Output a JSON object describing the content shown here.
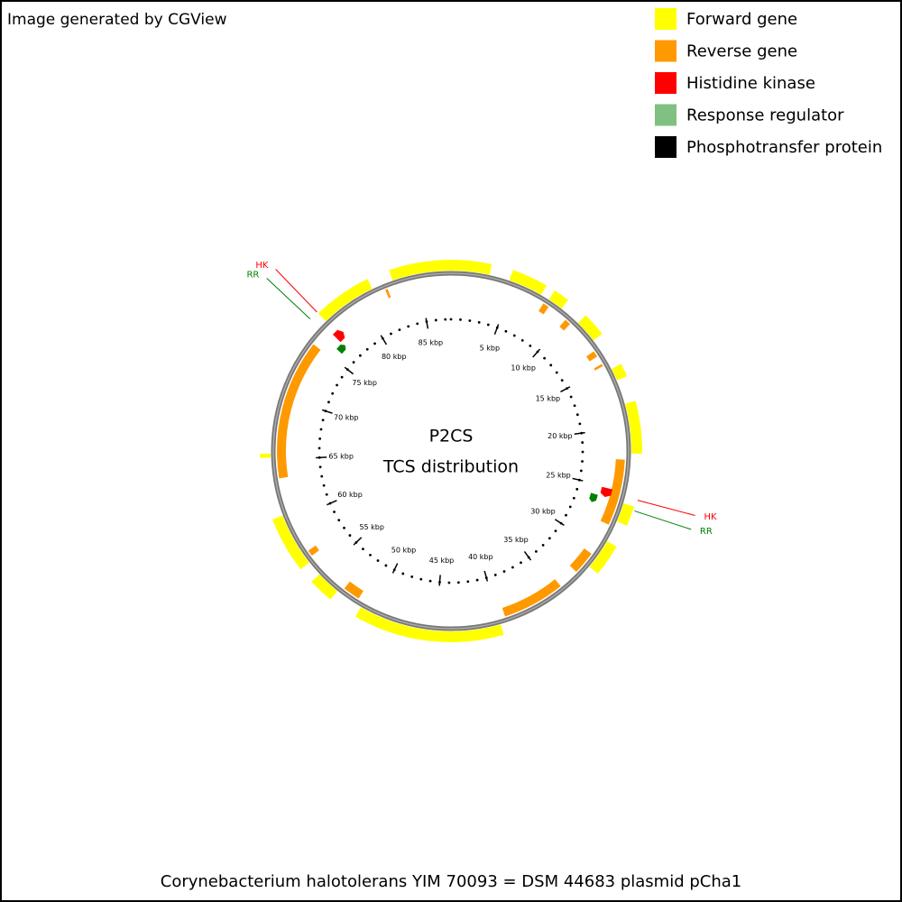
{
  "header": {
    "credit": "Image generated by CGView"
  },
  "legend": [
    {
      "label": "Forward gene",
      "color": "#ffff00"
    },
    {
      "label": "Reverse gene",
      "color": "#ff9900"
    },
    {
      "label": "Histidine kinase",
      "color": "#ff0000"
    },
    {
      "label": "Response regulator",
      "color": "#80c080"
    },
    {
      "label": "Phosphotransfer protein",
      "color": "#000000"
    }
  ],
  "map": {
    "title": "P2CS",
    "subtitle": "TCS distribution",
    "sequence_length_kbp": 87.6,
    "ticks": [
      {
        "value": 5,
        "label": "5 kbp"
      },
      {
        "value": 10,
        "label": "10 kbp"
      },
      {
        "value": 15,
        "label": "15 kbp"
      },
      {
        "value": 20,
        "label": "20 kbp"
      },
      {
        "value": 25,
        "label": "25 kbp"
      },
      {
        "value": 30,
        "label": "30 kbp"
      },
      {
        "value": 35,
        "label": "35 kbp"
      },
      {
        "value": 40,
        "label": "40 kbp"
      },
      {
        "value": 45,
        "label": "45 kbp"
      },
      {
        "value": 50,
        "label": "50 kbp"
      },
      {
        "value": 55,
        "label": "55 kbp"
      },
      {
        "value": 60,
        "label": "60 kbp"
      },
      {
        "value": 65,
        "label": "65 kbp"
      },
      {
        "value": 70,
        "label": "70 kbp"
      },
      {
        "value": 75,
        "label": "75 kbp"
      },
      {
        "value": 80,
        "label": "80 kbp"
      },
      {
        "value": 85,
        "label": "85 kbp"
      }
    ],
    "forward_genes": [
      {
        "start": 83.0,
        "end": 3.0
      },
      {
        "start": 4.6,
        "end": 7.3
      },
      {
        "start": 8.0,
        "end": 9.2
      },
      {
        "start": 10.9,
        "end": 12.7
      },
      {
        "start": 15.3,
        "end": 16.3
      },
      {
        "start": 18.2,
        "end": 22.1
      },
      {
        "start": 26.0,
        "end": 27.5
      },
      {
        "start": 29.2,
        "end": 31.6
      },
      {
        "start": 39.9,
        "end": 51.1
      },
      {
        "start": 53.3,
        "end": 55.2
      },
      {
        "start": 56.4,
        "end": 60.6
      },
      {
        "start": 65.2,
        "end": 65.5
      },
      {
        "start": 76.9,
        "end": 81.3
      }
    ],
    "reverse_genes": [
      {
        "start": 7.8,
        "end": 8.3
      },
      {
        "start": 10.0,
        "end": 10.5
      },
      {
        "start": 13.4,
        "end": 13.9
      },
      {
        "start": 14.6,
        "end": 14.8
      },
      {
        "start": 22.6,
        "end": 28.0
      },
      {
        "start": 30.7,
        "end": 32.6
      },
      {
        "start": 34.3,
        "end": 39.4
      },
      {
        "start": 51.6,
        "end": 53.0
      },
      {
        "start": 56.7,
        "end": 57.2
      },
      {
        "start": 63.5,
        "end": 74.9
      },
      {
        "start": 82.2,
        "end": 82.4
      }
    ],
    "features": [
      {
        "label": "HK",
        "position": 76.9,
        "color": "#ff0000"
      },
      {
        "label": "RR",
        "position": 76.2,
        "color": "#008000"
      },
      {
        "label": "HK",
        "position": 25.5,
        "color": "#ff0000"
      },
      {
        "label": "RR",
        "position": 26.3,
        "color": "#008000"
      }
    ]
  },
  "caption": "Corynebacterium halotolerans YIM 70093 = DSM 44683 plasmid pCha1"
}
